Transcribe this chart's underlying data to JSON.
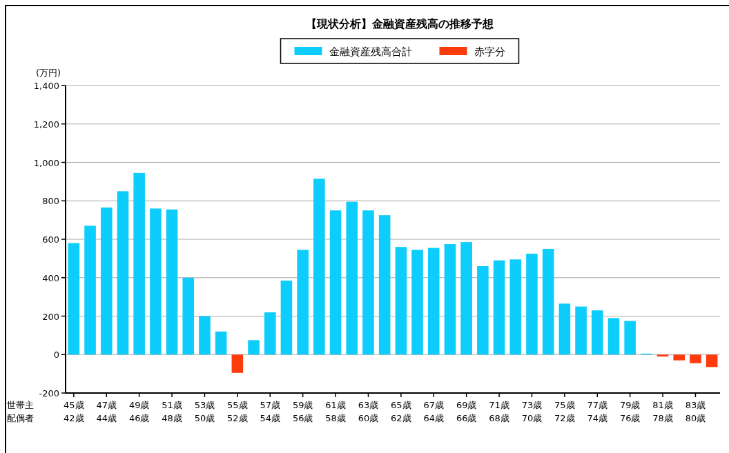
{
  "chart_data": {
    "type": "bar",
    "title": "【現状分析】金融資産残高の推移予想",
    "ylabel": "(万円)",
    "categories": [
      "45歳\n42歳",
      null,
      "47歳\n44歳",
      null,
      "49歳\n46歳",
      null,
      "51歳\n48歳",
      null,
      "53歳\n50歳",
      null,
      "55歳\n52歳",
      null,
      "57歳\n54歳",
      null,
      "59歳\n56歳",
      null,
      "61歳\n58歳",
      null,
      "63歳\n60歳",
      null,
      "65歳\n62歳",
      null,
      "67歳\n64歳",
      null,
      "69歳\n66歳",
      null,
      "71歳\n68歳",
      null,
      "73歳\n70歳",
      null,
      "75歳\n72歳",
      null,
      "77歳\n74歳",
      null,
      "79歳\n76歳",
      null,
      "81歳\n78歳",
      null,
      "83歳\n80歳",
      null
    ],
    "series": [
      {
        "name": "金融資産残高合計",
        "color": "#0ccdfb",
        "values": [
          580,
          670,
          765,
          850,
          945,
          760,
          755,
          400,
          200,
          120,
          null,
          75,
          220,
          385,
          545,
          915,
          750,
          795,
          750,
          725,
          560,
          545,
          555,
          575,
          585,
          460,
          490,
          495,
          525,
          550,
          265,
          250,
          230,
          190,
          175,
          5,
          null,
          null,
          null,
          null
        ]
      },
      {
        "name": "赤字分",
        "color": "#fd3c0d",
        "values": [
          null,
          null,
          null,
          null,
          null,
          null,
          null,
          null,
          null,
          null,
          -95,
          null,
          null,
          null,
          null,
          null,
          null,
          null,
          null,
          null,
          null,
          null,
          null,
          null,
          null,
          null,
          null,
          null,
          null,
          null,
          null,
          null,
          null,
          null,
          null,
          null,
          -10,
          -30,
          -45,
          -65
        ]
      }
    ],
    "ylim": [
      -200,
      1400
    ],
    "yticks": [
      {
        "value": -200,
        "label": "-200"
      },
      0,
      200,
      400,
      600,
      800,
      {
        "value": 1000,
        "label": "1,000"
      },
      {
        "value": 1200,
        "label": "1,200"
      },
      {
        "value": 1400,
        "label": "1,400"
      }
    ],
    "grid": "y",
    "legend": "top",
    "annotations": [
      "世帯主",
      "配偶者"
    ]
  }
}
